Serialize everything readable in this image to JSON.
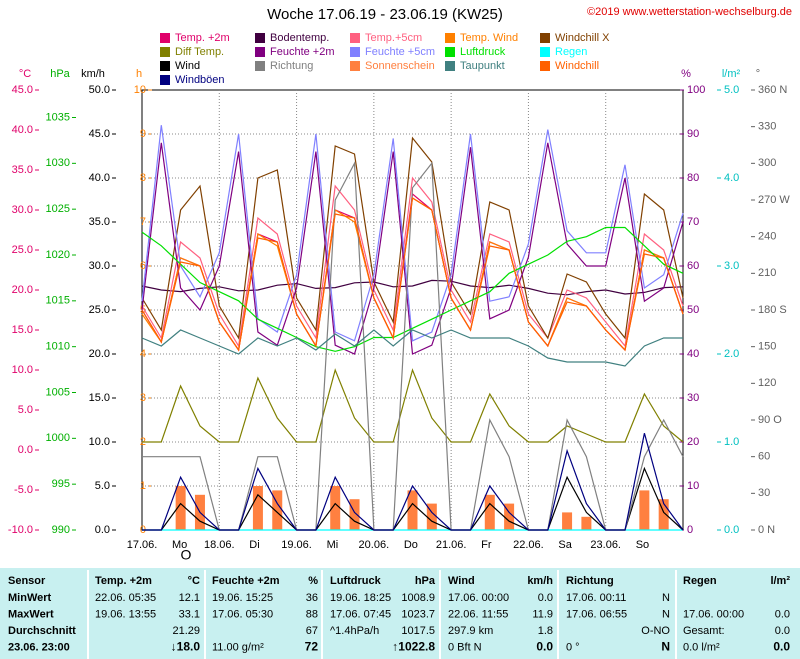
{
  "chart_data": {
    "type": "line",
    "title": "Woche 17.06.19 - 23.06.19 (KW25)",
    "copyright": "©2019 www.wetterstation-wechselburg.de",
    "categories": [
      "17.06.",
      null,
      null,
      null,
      "18.06.",
      null,
      null,
      null,
      "19.06.",
      null,
      null,
      null,
      "20.06.",
      null,
      null,
      null,
      "21.06.",
      null,
      null,
      null,
      "22.06.",
      null,
      null,
      null,
      "23.06.",
      null,
      null,
      null,
      null
    ],
    "day_names": [
      "Mo",
      "Di",
      "Mi",
      "Do",
      "Fr",
      "Sa",
      "So"
    ],
    "moon_phase": "O",
    "grid": true,
    "axes": [
      {
        "unit": "°C",
        "color": "#e0006a",
        "lim": [
          -10,
          45
        ],
        "ticks": [
          {
            "value": 45,
            "label": "45.0"
          },
          {
            "value": 40,
            "label": "40.0"
          },
          {
            "value": 35,
            "label": "35.0"
          },
          {
            "value": 30,
            "label": "30.0"
          },
          {
            "value": 25,
            "label": "25.0"
          },
          {
            "value": 20,
            "label": "20.0"
          },
          {
            "value": 15,
            "label": "15.0"
          },
          {
            "value": 10,
            "label": "10.0"
          },
          {
            "value": 5,
            "label": "5.0"
          },
          {
            "value": 0,
            "label": "0.0"
          },
          {
            "value": -5,
            "label": "-5.0"
          },
          {
            "value": -10,
            "label": "-10.0"
          }
        ]
      },
      {
        "unit": "hPa",
        "color": "#00b000",
        "lim": [
          990,
          1038
        ],
        "ticks": [
          1035,
          1030,
          1025,
          1020,
          1015,
          1010,
          1005,
          1000,
          995,
          990
        ]
      },
      {
        "unit": "km/h",
        "color": "#000000",
        "lim": [
          0,
          50
        ],
        "ticks": [
          {
            "value": 50,
            "label": "50.0"
          },
          {
            "value": 45,
            "label": "45.0"
          },
          {
            "value": 40,
            "label": "40.0"
          },
          {
            "value": 35,
            "label": "35.0"
          },
          {
            "value": 30,
            "label": "30.0"
          },
          {
            "value": 25,
            "label": "25.0"
          },
          {
            "value": 20,
            "label": "20.0"
          },
          {
            "value": 15,
            "label": "15.0"
          },
          {
            "value": 10,
            "label": "10.0"
          },
          {
            "value": 5,
            "label": "5.0"
          },
          {
            "value": 0,
            "label": "0.0"
          }
        ]
      },
      {
        "unit": "h",
        "color": "#ff8000",
        "lim": [
          0,
          10
        ],
        "ticks": [
          10,
          9,
          8,
          7,
          6,
          5,
          4,
          3,
          2,
          1,
          0
        ]
      },
      {
        "unit": "%",
        "color": "#800080",
        "lim": [
          0,
          100
        ],
        "ticks": [
          100,
          90,
          80,
          70,
          60,
          50,
          40,
          30,
          20,
          10,
          0
        ]
      },
      {
        "unit": "l/m²",
        "color": "#00c0c0",
        "lim": [
          0,
          5
        ],
        "ticks": [
          {
            "value": 5,
            "label": "5.0"
          },
          {
            "value": 4,
            "label": "4.0"
          },
          {
            "value": 3,
            "label": "3.0"
          },
          {
            "value": 2,
            "label": "2.0"
          },
          {
            "value": 1,
            "label": "1.0"
          },
          {
            "value": 0,
            "label": "0.0"
          }
        ]
      },
      {
        "unit": "°",
        "color": "#606060",
        "lim": [
          0,
          360
        ],
        "ticks": [
          {
            "value": 360,
            "label": "360 N"
          },
          330,
          300,
          {
            "value": 270,
            "label": "270 W"
          },
          240,
          210,
          {
            "value": 180,
            "label": "180 S"
          },
          150,
          120,
          {
            "value": 90,
            "label": "90 O"
          },
          60,
          30,
          {
            "value": 0,
            "label": "0 N"
          }
        ]
      }
    ],
    "series": [
      {
        "name": "Temp. +2m",
        "color": "#e0006a",
        "axis": 0,
        "values": [
          17.5,
          13.5,
          24,
          23,
          16,
          12.5,
          27,
          26,
          17,
          13,
          30,
          29,
          19,
          14,
          32,
          30,
          19,
          15,
          26,
          25,
          16,
          13,
          19,
          18,
          15,
          12.5,
          25,
          24,
          17
        ]
      },
      {
        "name": "Bodentemp.",
        "color": "#400040",
        "axis": 0,
        "values": [
          20.5,
          20,
          19.8,
          20.2,
          20.4,
          19.9,
          20,
          20.6,
          20.8,
          20.2,
          20.3,
          20.9,
          21,
          20.4,
          20.5,
          21.2,
          21.1,
          20.5,
          20.3,
          20.6,
          20.2,
          19.6,
          19.4,
          19.8,
          20,
          19.5,
          19.7,
          20.3,
          20.4
        ]
      },
      {
        "name": "Temp.+5cm",
        "color": "#ff6080",
        "axis": 0,
        "values": [
          18,
          14,
          26,
          24,
          17,
          13,
          29,
          27,
          18,
          14,
          33,
          30,
          20,
          15,
          34,
          31,
          20,
          16,
          27,
          26,
          17,
          14,
          20,
          19,
          16,
          13,
          27,
          25,
          18
        ]
      },
      {
        "name": "Temp. Wind",
        "color": "#ff8000",
        "axis": 0,
        "values": [
          17,
          13.5,
          24,
          23,
          16,
          12.5,
          27,
          25.5,
          17,
          13,
          30,
          28.5,
          19,
          14,
          31.5,
          30,
          19,
          15,
          26,
          25,
          16,
          13,
          19,
          18,
          15,
          12.5,
          25,
          24,
          17
        ]
      },
      {
        "name": "Windchill X",
        "color": "#804000",
        "axis": 0,
        "values": [
          19,
          15,
          30,
          33,
          18,
          14,
          34,
          35,
          19,
          15,
          38,
          37,
          21,
          16,
          39,
          36,
          21,
          17,
          31,
          30,
          18,
          14,
          22,
          21,
          17,
          14,
          32,
          30,
          19
        ]
      },
      {
        "name": "Diff Temp.",
        "color": "#808000",
        "axis": 0,
        "values": [
          1,
          1,
          8,
          3,
          1,
          1,
          9,
          4,
          1,
          1,
          10,
          4,
          1,
          1,
          10,
          4,
          1,
          1,
          7,
          3,
          1,
          1,
          3,
          2,
          1,
          1,
          7,
          3,
          1
        ]
      },
      {
        "name": "Feuchte +2m",
        "color": "#800080",
        "axis": 4,
        "values": [
          50,
          88,
          55,
          50,
          60,
          86,
          45,
          42,
          55,
          86,
          42,
          40,
          55,
          86,
          40,
          42,
          55,
          87,
          48,
          50,
          62,
          88,
          65,
          60,
          60,
          80,
          52,
          55,
          70
        ]
      },
      {
        "name": "Feuchte +5cm",
        "color": "#8080ff",
        "axis": 4,
        "values": [
          52,
          92,
          60,
          53,
          63,
          90,
          48,
          45,
          58,
          90,
          45,
          43,
          58,
          89,
          43,
          45,
          58,
          90,
          52,
          53,
          65,
          91,
          68,
          63,
          63,
          83,
          55,
          58,
          72
        ]
      },
      {
        "name": "Luftdruck",
        "color": "#00e000",
        "axis": 1,
        "values": [
          1022.5,
          1021,
          1019,
          1017,
          1016,
          1015,
          1013,
          1012,
          1011,
          1010,
          1009.5,
          1010,
          1011,
          1011,
          1012,
          1013,
          1014,
          1015,
          1016,
          1018,
          1019,
          1020,
          1021.5,
          1022,
          1023,
          1023,
          1021,
          1019,
          1018
        ]
      },
      {
        "name": "Regen",
        "color": "#00ffff",
        "axis": 5,
        "values": [
          0,
          0,
          0,
          0,
          0,
          0,
          0,
          0,
          0,
          0,
          0,
          0,
          0,
          0,
          0,
          0,
          0,
          0,
          0,
          0,
          0,
          0,
          0,
          0,
          0,
          0,
          0,
          0,
          0
        ]
      },
      {
        "name": "Wind",
        "color": "#000000",
        "axis": 2,
        "values": [
          0,
          0,
          3,
          1,
          0,
          0,
          4,
          2,
          0,
          0,
          3,
          1,
          0,
          0,
          3,
          1,
          0,
          0,
          3,
          1,
          0,
          0,
          6,
          2,
          0,
          0,
          7,
          2,
          0
        ]
      },
      {
        "name": "Richtung",
        "color": "#808080",
        "axis": 6,
        "values": [
          60,
          60,
          60,
          60,
          0,
          0,
          60,
          60,
          0,
          0,
          270,
          300,
          0,
          0,
          280,
          300,
          0,
          0,
          90,
          60,
          0,
          0,
          90,
          60,
          0,
          0,
          60,
          90,
          60
        ]
      },
      {
        "name": "Sonnenschein",
        "color": "#ff8040",
        "axis": 3,
        "type": "bar",
        "values": [
          0,
          0,
          1,
          0.8,
          0,
          0,
          1,
          0.9,
          0,
          0,
          1,
          0.7,
          0,
          0,
          0.9,
          0.6,
          0,
          0,
          0.8,
          0.6,
          0,
          0,
          0.4,
          0.3,
          0,
          0,
          0.9,
          0.7,
          0
        ]
      },
      {
        "name": "Taupunkt",
        "color": "#408080",
        "axis": 0,
        "values": [
          14,
          13,
          15,
          14,
          13,
          12,
          14,
          13,
          14,
          12.5,
          14.5,
          13,
          15,
          13,
          15,
          14,
          15,
          14,
          14,
          14,
          13,
          11.5,
          11,
          11,
          11,
          10.5,
          13,
          14,
          14
        ]
      },
      {
        "name": "Windchill",
        "color": "#ff6000",
        "axis": 0,
        "values": [
          17.5,
          13.5,
          23.5,
          23,
          16,
          12.5,
          26.5,
          26,
          17,
          13,
          29.5,
          29,
          19,
          14,
          31.5,
          30,
          19,
          15,
          25.5,
          25,
          16,
          13,
          18.5,
          18,
          15,
          12.5,
          24.5,
          24,
          17
        ]
      },
      {
        "name": "Windböen",
        "color": "#000080",
        "axis": 2,
        "values": [
          0,
          0,
          6,
          2,
          0,
          0,
          7,
          3,
          0,
          0,
          6,
          2,
          0,
          0,
          5,
          2,
          0,
          0,
          5,
          2,
          0,
          0,
          9,
          3,
          0,
          0,
          11,
          3,
          0
        ]
      }
    ]
  },
  "table": {
    "sensor": "Sensor",
    "columns": [
      {
        "name": "Temp. +2m",
        "unit": "°C"
      },
      {
        "name": "Feuchte +2m",
        "unit": "%"
      },
      {
        "name": "Luftdruck",
        "unit": "hPa"
      },
      {
        "name": "Wind",
        "unit": "km/h"
      },
      {
        "name": "Richtung"
      },
      {
        "name": "Regen",
        "unit": "l/m²"
      }
    ],
    "rows": [
      {
        "label": "MinWert",
        "cells": [
          {
            "left": "22.06. 05:35",
            "right": "12.1"
          },
          {
            "left": "19.06. 15:25",
            "right": "36"
          },
          {
            "left": "19.06. 18:25",
            "right": "1008.9"
          },
          {
            "left": "17.06. 00:00",
            "right": "0.0"
          },
          {
            "left": "17.06. 00:11",
            "right": "N"
          },
          {}
        ]
      },
      {
        "label": "MaxWert",
        "cells": [
          {
            "left": "19.06. 13:55",
            "right": "33.1"
          },
          {
            "left": "17.06. 05:30",
            "right": "88"
          },
          {
            "left": "17.06. 07:45",
            "right": "1023.7"
          },
          {
            "left": "22.06. 11:55",
            "right": "11.9"
          },
          {
            "left": "17.06. 06:55",
            "right": "N"
          },
          {
            "left": "17.06. 00:00",
            "right": "0.0"
          }
        ]
      },
      {
        "label": "Durchschnitt",
        "cells": [
          {
            "right": "21.29"
          },
          {
            "right": "67"
          },
          {
            "left": "^1.4hPa/h",
            "right": "1017.5"
          },
          {
            "left": "297.9 km",
            "right": "1.8"
          },
          {
            "right": "O-NO"
          },
          {
            "left": "Gesamt:",
            "right": "0.0"
          }
        ]
      },
      {
        "label": "23.06. 23:00",
        "cells": [
          {
            "right": "↓18.0"
          },
          {
            "left": "11.00 g/m²",
            "right": "72"
          },
          {
            "right": "↑1022.8"
          },
          {
            "left": "0 Bft N",
            "right": "0.0"
          },
          {
            "left": "0 °",
            "right": "N"
          },
          {
            "left": "0.0 l/m²",
            "right": "0.0"
          }
        ]
      }
    ]
  }
}
